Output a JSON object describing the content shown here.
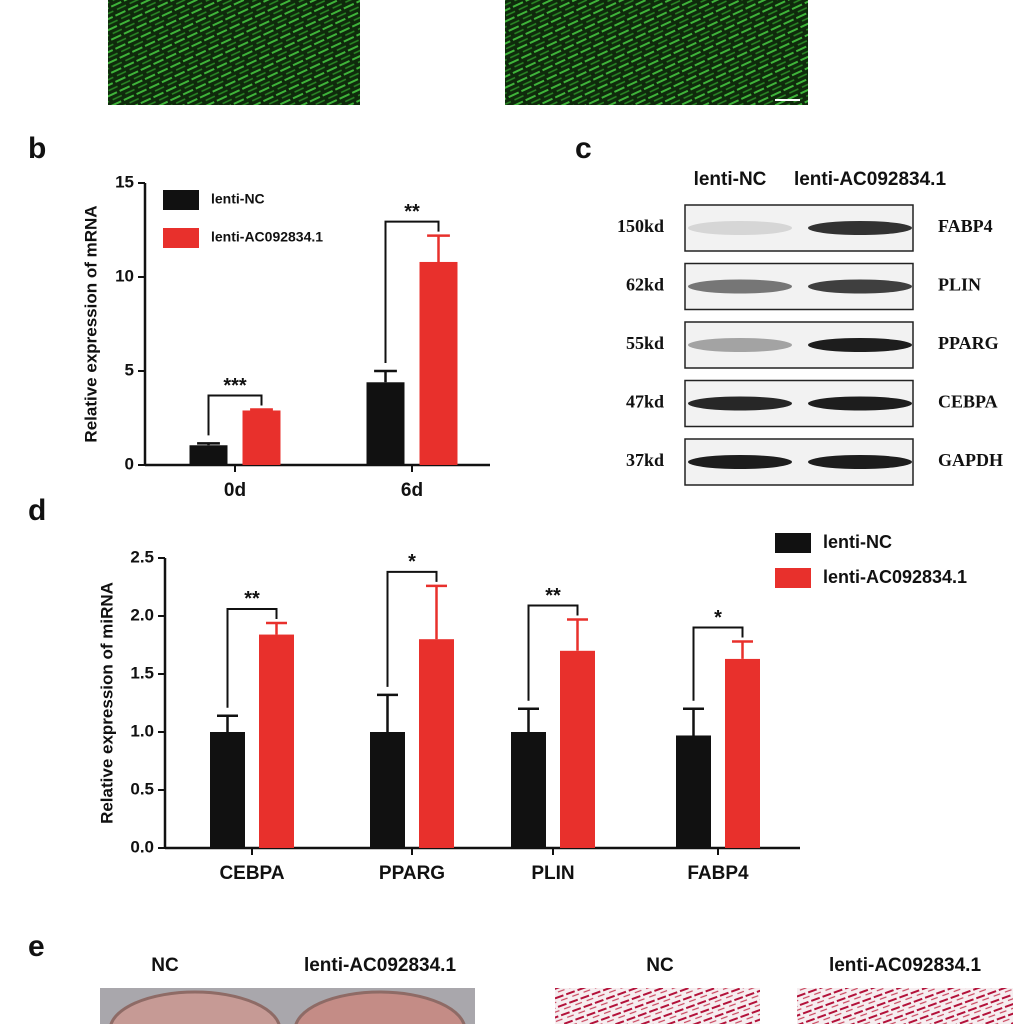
{
  "chart_data": [
    {
      "type": "bar",
      "y_label": "Relative expression of mRNA",
      "categories": [
        "0d",
        "6d"
      ],
      "series": [
        {
          "name": "lenti-NC",
          "color": "#111111",
          "values": [
            1.05,
            4.4
          ],
          "errors": [
            0.1,
            0.6
          ]
        },
        {
          "name": "lenti-AC092834.1",
          "color": "#e8302c",
          "values": [
            2.9,
            10.8
          ],
          "errors": [
            0.05,
            1.4
          ]
        }
      ],
      "annotations": [
        "***",
        "**"
      ],
      "ylim": [
        0,
        15
      ],
      "yticks": [
        0,
        5,
        10,
        15
      ]
    },
    {
      "type": "bar",
      "y_label": "Relative expression of miRNA",
      "categories": [
        "CEBPA",
        "PPARG",
        "PLIN",
        "FABP4"
      ],
      "series": [
        {
          "name": "lenti-NC",
          "color": "#111111",
          "values": [
            1.0,
            1.0,
            1.0,
            0.97
          ],
          "errors": [
            0.14,
            0.32,
            0.2,
            0.23
          ]
        },
        {
          "name": "lenti-AC092834.1",
          "color": "#e8302c",
          "values": [
            1.84,
            1.8,
            1.7,
            1.63
          ],
          "errors": [
            0.1,
            0.46,
            0.27,
            0.15
          ]
        }
      ],
      "annotations": [
        "**",
        "*",
        "**",
        "*"
      ],
      "ylim": [
        0,
        2.5
      ],
      "yticks": [
        {
          "value": 0,
          "label": "0.0"
        },
        {
          "value": 0.5,
          "label": "0.5"
        },
        {
          "value": 1,
          "label": "1.0"
        },
        {
          "value": 1.5,
          "label": "1.5"
        },
        {
          "value": 2,
          "label": "2.0"
        },
        {
          "value": 2.5,
          "label": "2.5"
        }
      ]
    }
  ],
  "panels": {
    "labels": [
      "b",
      "c",
      "d",
      "e"
    ],
    "blot": {
      "columns": [
        "lenti-NC",
        "lenti-AC092834.1"
      ],
      "rows": [
        {
          "size": "150kd",
          "protein": "FABP4"
        },
        {
          "size": "62kd",
          "protein": "PLIN"
        },
        {
          "size": "55kd",
          "protein": "PPARG"
        },
        {
          "size": "47kd",
          "protein": "CEBPA"
        },
        {
          "size": "37kd",
          "protein": "GAPDH"
        }
      ]
    },
    "staining": {
      "labels": [
        "NC",
        "lenti-AC092834.1",
        "NC",
        "lenti-AC092834.1"
      ]
    }
  }
}
